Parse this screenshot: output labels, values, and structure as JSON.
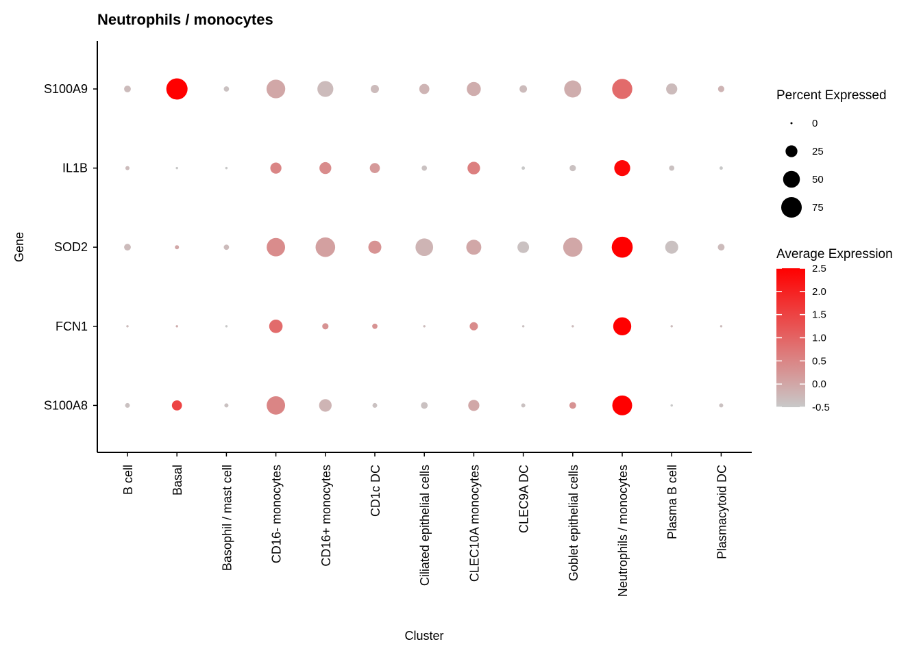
{
  "chart_data": {
    "type": "dotplot",
    "title": "Neutrophils / monocytes",
    "xlabel": "Cluster",
    "ylabel": "Gene",
    "genes": [
      "S100A9",
      "IL1B",
      "SOD2",
      "FCN1",
      "S100A8"
    ],
    "clusters": [
      "B cell",
      "Basal",
      "Basophil / mast cell",
      "CD16- monocytes",
      "CD16+ monocytes",
      "CD1c DC",
      "Ciliated epithelial cells",
      "CLEC10A monocytes",
      "CLEC9A DC",
      "Goblet epithelial cells",
      "Neutrophils / monocytes",
      "Plasma B cell",
      "Plasmacytoid DC"
    ],
    "pct_expressed": [
      [
        8,
        80,
        5,
        62,
        45,
        12,
        18,
        35,
        10,
        52,
        72,
        22,
        7
      ],
      [
        3,
        1,
        1,
        22,
        25,
        18,
        5,
        28,
        2,
        7,
        45,
        5,
        2
      ],
      [
        8,
        3,
        5,
        60,
        68,
        30,
        55,
        40,
        24,
        65,
        78,
        30,
        8
      ],
      [
        1,
        1,
        1,
        32,
        7,
        5,
        1,
        12,
        1,
        1,
        58,
        1,
        1
      ],
      [
        4,
        18,
        3,
        60,
        28,
        4,
        8,
        22,
        3,
        8,
        70,
        1,
        3
      ]
    ],
    "avg_expression": [
      [
        -0.3,
        2.5,
        -0.4,
        0.0,
        -0.3,
        -0.3,
        -0.2,
        -0.1,
        -0.3,
        -0.1,
        0.9,
        -0.3,
        -0.2
      ],
      [
        -0.3,
        -0.5,
        -0.5,
        0.5,
        0.4,
        0.2,
        -0.4,
        0.6,
        -0.5,
        -0.4,
        2.4,
        -0.4,
        -0.5
      ],
      [
        -0.3,
        0.0,
        -0.3,
        0.4,
        0.1,
        0.3,
        -0.2,
        0.0,
        -0.4,
        0.0,
        2.5,
        -0.4,
        -0.3
      ],
      [
        -0.3,
        -0.1,
        -0.5,
        0.9,
        0.3,
        0.3,
        -0.3,
        0.4,
        -0.4,
        -0.3,
        2.5,
        -0.3,
        -0.3
      ],
      [
        -0.4,
        1.5,
        -0.4,
        0.5,
        -0.2,
        -0.4,
        -0.4,
        0.0,
        -0.4,
        0.3,
        2.5,
        -0.5,
        -0.4
      ]
    ],
    "size_legend": {
      "title": "Percent Expressed",
      "breaks": [
        0,
        25,
        50,
        75
      ],
      "labels": [
        "0",
        "25",
        "50",
        "75"
      ]
    },
    "color_legend": {
      "title": "Average Expression",
      "range": [
        -0.5,
        2.5
      ],
      "breaks": [
        2.5,
        2.0,
        1.5,
        1.0,
        0.5,
        0.0,
        -0.5
      ],
      "labels": [
        "2.5",
        "2.0",
        "1.5",
        "1.0",
        "0.5",
        "0.0",
        "-0.5"
      ],
      "low_color": "#C8C8C8",
      "high_color": "#FF0000"
    },
    "grid": false,
    "legend_position": "right"
  }
}
